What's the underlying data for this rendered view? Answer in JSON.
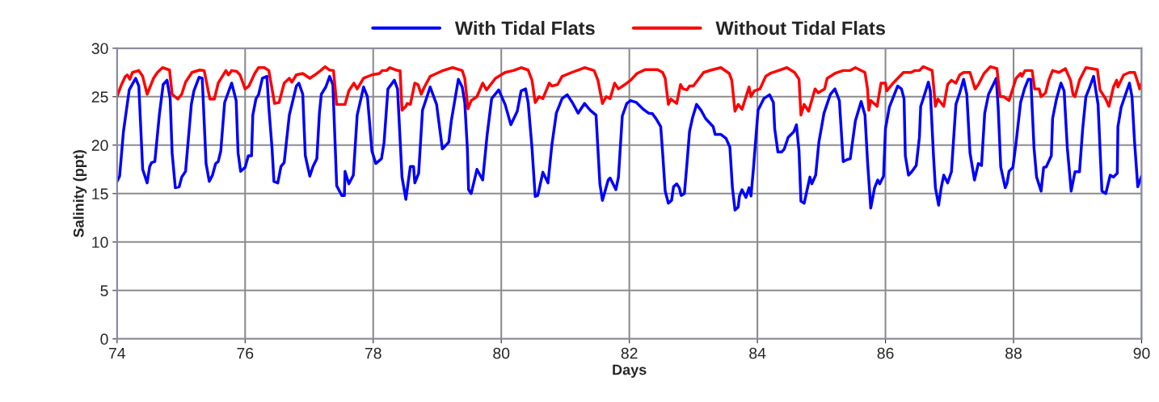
{
  "chart_data": {
    "type": "line",
    "xlabel": "Days",
    "ylabel": "Salinity (ppt)",
    "xlim": [
      74,
      90
    ],
    "xticks": [
      74,
      76,
      78,
      80,
      82,
      84,
      86,
      88,
      90
    ],
    "ylim": [
      0,
      30
    ],
    "yticks": [
      0,
      5,
      10,
      15,
      20,
      25,
      30
    ],
    "grid": true,
    "legend": "top",
    "marker": "none",
    "line_style": "solid",
    "series": [
      {
        "name": "With Tidal Flats",
        "color": "#0000ff",
        "x": [
          74.0,
          74.04,
          74.1,
          74.19,
          74.29,
          74.34,
          74.4,
          74.47,
          74.51,
          74.54,
          74.59,
          74.66,
          74.72,
          74.78,
          74.83,
          74.86,
          74.91,
          74.97,
          75.01,
          75.07,
          75.16,
          75.2,
          75.28,
          75.33,
          75.39,
          75.44,
          75.49,
          75.54,
          75.58,
          75.62,
          75.68,
          75.79,
          75.86,
          75.89,
          75.93,
          76.0,
          76.05,
          76.1,
          76.12,
          76.17,
          76.21,
          76.27,
          76.34,
          76.37,
          76.42,
          76.45,
          76.51,
          76.56,
          76.61,
          76.69,
          76.8,
          76.84,
          76.9,
          76.94,
          77.01,
          77.06,
          77.12,
          77.16,
          77.19,
          77.26,
          77.32,
          77.37,
          77.43,
          77.51,
          77.55,
          77.56,
          77.62,
          77.69,
          77.75,
          77.85,
          77.91,
          77.98,
          78.04,
          78.13,
          78.17,
          78.23,
          78.33,
          78.38,
          78.45,
          78.51,
          78.58,
          78.63,
          78.65,
          78.71,
          78.77,
          78.89,
          78.99,
          79.08,
          79.18,
          79.22,
          79.33,
          79.39,
          79.43,
          79.47,
          79.49,
          79.53,
          79.62,
          79.71,
          79.78,
          79.85,
          79.96,
          80.06,
          80.15,
          80.25,
          80.31,
          80.38,
          80.42,
          80.48,
          80.53,
          80.57,
          80.65,
          80.73,
          80.79,
          80.86,
          80.95,
          81.03,
          81.11,
          81.2,
          81.3,
          81.39,
          81.48,
          81.54,
          81.58,
          81.67,
          81.7,
          81.79,
          81.83,
          81.89,
          81.96,
          82.02,
          82.11,
          82.21,
          82.3,
          82.36,
          82.42,
          82.49,
          82.52,
          82.56,
          82.61,
          82.66,
          82.69,
          82.74,
          82.78,
          82.81,
          82.86,
          82.9,
          82.94,
          82.99,
          83.05,
          83.12,
          83.19,
          83.26,
          83.31,
          83.34,
          83.43,
          83.51,
          83.57,
          83.61,
          83.65,
          83.7,
          83.72,
          83.76,
          83.82,
          83.87,
          83.9,
          83.94,
          83.98,
          84.01,
          84.1,
          84.19,
          84.25,
          84.27,
          84.32,
          84.38,
          84.42,
          84.48,
          84.57,
          84.61,
          84.65,
          84.68,
          84.73,
          84.82,
          84.85,
          84.91,
          84.96,
          85.04,
          85.14,
          85.21,
          85.28,
          85.34,
          85.4,
          85.45,
          85.53,
          85.62,
          85.68,
          85.72,
          85.77,
          85.83,
          85.88,
          85.91,
          85.97,
          86.0,
          86.06,
          86.19,
          86.25,
          86.29,
          86.31,
          86.36,
          86.41,
          86.48,
          86.53,
          86.55,
          86.6,
          86.67,
          86.7,
          86.75,
          86.78,
          86.83,
          86.87,
          86.91,
          86.97,
          87.03,
          87.1,
          87.16,
          87.22,
          87.27,
          87.32,
          87.39,
          87.45,
          87.5,
          87.55,
          87.61,
          87.73,
          87.76,
          87.8,
          87.87,
          87.9,
          87.93,
          87.99,
          88.04,
          88.11,
          88.17,
          88.23,
          88.27,
          88.32,
          88.36,
          88.43,
          88.47,
          88.51,
          88.59,
          88.61,
          88.67,
          88.74,
          88.79,
          88.84,
          88.9,
          88.96,
          89.03,
          89.08,
          89.13,
          89.19,
          89.25,
          89.32,
          89.38,
          89.44,
          89.51,
          89.56,
          89.62,
          89.63,
          89.68,
          89.75,
          89.81,
          89.85,
          89.89,
          89.94,
          90.0
        ],
        "values": [
          16.25,
          16.8,
          21.4,
          25.7,
          26.9,
          26.1,
          17.5,
          16.1,
          17.8,
          18.2,
          18.3,
          23.1,
          26.25,
          26.7,
          24.75,
          19.2,
          15.6,
          15.7,
          16.7,
          17.3,
          24.2,
          25.6,
          27,
          26.9,
          18.1,
          16.25,
          16.9,
          18.1,
          18.3,
          19.4,
          24.4,
          26.4,
          24.6,
          19.2,
          17.3,
          17.7,
          18.9,
          18.9,
          23.1,
          24.8,
          25.2,
          26.9,
          27.1,
          23.9,
          19.7,
          16.25,
          16.1,
          17.8,
          18.2,
          23.1,
          26.1,
          26.4,
          25.25,
          18.9,
          16.8,
          17.8,
          18.6,
          23.3,
          25.25,
          26,
          27.1,
          26.25,
          15.8,
          14.8,
          14.8,
          17.3,
          16,
          16.9,
          23.1,
          26,
          25,
          19.4,
          18.1,
          18.6,
          20.3,
          25.8,
          26.7,
          25.8,
          16.7,
          14.4,
          17.8,
          17.8,
          16.1,
          17.1,
          23.6,
          26,
          24.2,
          19.6,
          20.3,
          22.5,
          26.8,
          26,
          24.4,
          19.7,
          15.4,
          15,
          17.5,
          16.4,
          21.1,
          24.8,
          25.7,
          24.2,
          22.1,
          23.5,
          25.6,
          25.8,
          24.4,
          19.7,
          14.7,
          14.8,
          17.2,
          16.1,
          20,
          23.3,
          24.8,
          25.2,
          24.4,
          23.3,
          24.3,
          23.6,
          23.1,
          16,
          14.3,
          16.4,
          16.6,
          15.4,
          16.7,
          23,
          24.3,
          24.6,
          24.4,
          23.75,
          23.3,
          23.25,
          22.7,
          21.9,
          19.2,
          15.25,
          14,
          14.3,
          15.7,
          16,
          15.6,
          14.8,
          15,
          18.1,
          21.4,
          22.9,
          24.2,
          23.6,
          22.75,
          22.25,
          21.9,
          21.1,
          21.1,
          20.7,
          19.8,
          15.6,
          13.3,
          13.6,
          14.75,
          15.4,
          14.6,
          15.6,
          14.75,
          17.75,
          21.1,
          23.6,
          24.8,
          25.2,
          24.4,
          21.7,
          19.3,
          19.3,
          19.6,
          20.8,
          21.4,
          22.1,
          19.4,
          14.2,
          14,
          16.7,
          16,
          16.9,
          20.3,
          23.3,
          25.25,
          25.8,
          24.6,
          18.3,
          18.5,
          18.6,
          22.5,
          24.5,
          23.1,
          18.3,
          13.5,
          15.6,
          16.4,
          16,
          16.8,
          21.7,
          23.9,
          26.1,
          25.8,
          24.8,
          18.9,
          16.9,
          17.25,
          17.9,
          20.8,
          24,
          25,
          26.5,
          25.6,
          18.9,
          15.6,
          13.8,
          15.6,
          16.9,
          16.1,
          17.25,
          24.2,
          25.4,
          26.8,
          25.25,
          19.2,
          16.4,
          18.1,
          17.9,
          23.3,
          25.25,
          26.9,
          23.9,
          17.75,
          15.6,
          16.1,
          17.3,
          17.7,
          20.3,
          24.4,
          25.8,
          26.8,
          26.8,
          19.7,
          16.7,
          15.25,
          17.7,
          17.75,
          18.9,
          22.75,
          24.75,
          26.4,
          25.6,
          19.7,
          15.25,
          17.25,
          17.25,
          21.7,
          25,
          26,
          27.1,
          24.2,
          15.25,
          15,
          16.9,
          16.7,
          17.1,
          21.9,
          23.9,
          25.25,
          26.4,
          25,
          20.3,
          15.7,
          16.8
        ]
      },
      {
        "name": "Without Tidal Flats",
        "color": "#ff0000",
        "x": [
          74.0,
          74.06,
          74.13,
          74.16,
          74.2,
          74.24,
          74.34,
          74.4,
          74.47,
          74.57,
          74.63,
          74.71,
          74.82,
          74.86,
          74.95,
          75.01,
          75.07,
          75.17,
          75.29,
          75.36,
          75.45,
          75.52,
          75.58,
          75.7,
          75.74,
          75.79,
          75.87,
          75.92,
          76.0,
          76.06,
          76.15,
          76.21,
          76.3,
          76.37,
          76.46,
          76.53,
          76.61,
          76.69,
          76.73,
          76.8,
          76.9,
          77.01,
          77.09,
          77.18,
          77.25,
          77.32,
          77.38,
          77.43,
          77.56,
          77.62,
          77.7,
          77.75,
          77.85,
          77.98,
          78.1,
          78.14,
          78.21,
          78.26,
          78.38,
          78.42,
          78.45,
          78.51,
          78.53,
          78.58,
          78.65,
          78.7,
          78.75,
          78.8,
          78.89,
          78.99,
          79.09,
          79.24,
          79.39,
          79.43,
          79.48,
          79.53,
          79.62,
          79.71,
          79.77,
          79.91,
          80.06,
          80.19,
          80.31,
          80.42,
          80.48,
          80.53,
          80.59,
          80.65,
          80.75,
          80.79,
          80.88,
          80.95,
          81.1,
          81.2,
          81.3,
          81.45,
          81.51,
          81.58,
          81.64,
          81.7,
          81.77,
          81.83,
          81.93,
          82.02,
          82.12,
          82.25,
          82.44,
          82.52,
          82.56,
          82.61,
          82.65,
          82.74,
          82.8,
          82.84,
          82.9,
          82.94,
          83.0,
          83.16,
          83.28,
          83.43,
          83.56,
          83.6,
          83.65,
          83.7,
          83.76,
          83.87,
          83.9,
          83.95,
          84.04,
          84.13,
          84.2,
          84.33,
          84.46,
          84.58,
          84.65,
          84.68,
          84.73,
          84.8,
          84.9,
          84.95,
          85.05,
          85.09,
          85.21,
          85.34,
          85.45,
          85.53,
          85.68,
          85.72,
          85.74,
          85.77,
          85.87,
          85.93,
          86.0,
          86.02,
          86.12,
          86.28,
          86.4,
          86.46,
          86.53,
          86.59,
          86.73,
          86.78,
          86.82,
          86.91,
          86.97,
          87.03,
          87.1,
          87.16,
          87.22,
          87.32,
          87.4,
          87.45,
          87.54,
          87.64,
          87.74,
          87.79,
          87.85,
          87.93,
          88.04,
          88.11,
          88.13,
          88.18,
          88.29,
          88.33,
          88.4,
          88.43,
          88.5,
          88.55,
          88.61,
          88.71,
          88.81,
          88.89,
          88.93,
          88.96,
          89.03,
          89.13,
          89.31,
          89.35,
          89.44,
          89.49,
          89.56,
          89.61,
          89.63,
          89.72,
          89.81,
          89.89,
          89.94,
          89.97,
          90.0
        ],
        "values": [
          25,
          26.1,
          27.1,
          27.25,
          26.8,
          27.5,
          27.7,
          27.1,
          25.25,
          26.9,
          27.5,
          28,
          27.75,
          25.25,
          24.75,
          25.25,
          26.5,
          27.5,
          27.75,
          27.7,
          24.75,
          24.75,
          26.4,
          27.7,
          27.25,
          27.7,
          27.6,
          27.25,
          25.8,
          26.1,
          27.4,
          28,
          28,
          27.7,
          24.3,
          24.4,
          26.4,
          26.9,
          26.5,
          27.25,
          27.4,
          26.9,
          27.25,
          27.7,
          28.1,
          27.75,
          27.7,
          24.2,
          24.2,
          25.6,
          26.4,
          25.8,
          26.9,
          27.25,
          27.4,
          27.7,
          27.7,
          28,
          27.7,
          27.7,
          23.6,
          24,
          24.3,
          24.2,
          26.4,
          26.25,
          25.25,
          26,
          27.1,
          27.4,
          27.7,
          28,
          27.7,
          26.9,
          23.75,
          24.6,
          25,
          26.4,
          25.7,
          26.9,
          27.5,
          27.7,
          28,
          27.75,
          26.7,
          24.4,
          25,
          24.8,
          26.4,
          26.1,
          26.25,
          27.1,
          27.5,
          27.75,
          28,
          27.7,
          26.7,
          24.3,
          25,
          24.8,
          26.4,
          25.8,
          26.25,
          26.7,
          27.4,
          27.8,
          27.8,
          27.5,
          26.9,
          24.2,
          24.75,
          24.3,
          26.25,
          25.8,
          25.7,
          26.1,
          26.1,
          27.5,
          27.75,
          28,
          27.4,
          26.7,
          23.5,
          24.2,
          23.7,
          26,
          25,
          25.6,
          25.8,
          27.1,
          27.4,
          27.7,
          28,
          27.5,
          26.8,
          23.1,
          24.2,
          23.5,
          25.8,
          25.4,
          25.8,
          26.9,
          27.4,
          27.7,
          27.7,
          28,
          27.5,
          25.8,
          23.6,
          24.6,
          24,
          26.4,
          26.4,
          25.6,
          26.4,
          27.5,
          27.5,
          27.7,
          27.7,
          28.1,
          27.7,
          24,
          24.75,
          24,
          26.25,
          26.7,
          26.4,
          27.25,
          27.5,
          27.5,
          25.8,
          26.25,
          27.4,
          28.1,
          27.9,
          25,
          25,
          24.6,
          26.9,
          27.4,
          27.1,
          27.7,
          27.7,
          25.8,
          25.8,
          25,
          25.4,
          26.7,
          27.7,
          27.5,
          27.9,
          26.7,
          25.2,
          25,
          26.7,
          28,
          27.8,
          25.7,
          24.75,
          24,
          26,
          26.7,
          26,
          27.25,
          27.5,
          27.5,
          26.5,
          25.8,
          26.4
        ]
      }
    ]
  }
}
